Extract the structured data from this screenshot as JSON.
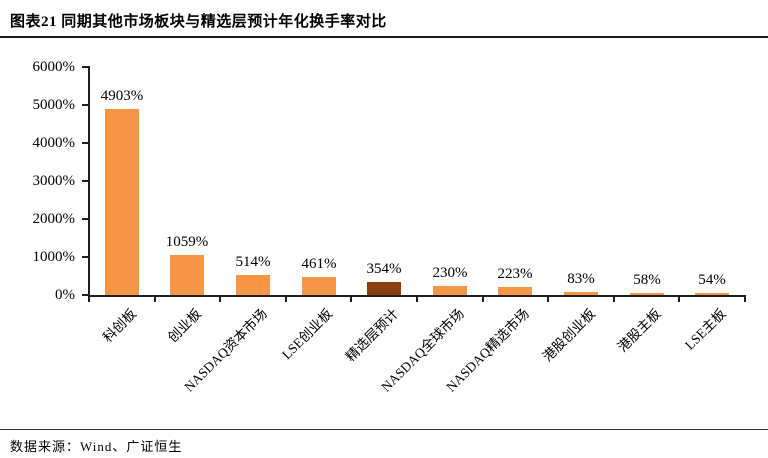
{
  "header": {
    "title": "图表21 同期其他市场板块与精选层预计年化换手率对比"
  },
  "footer": {
    "source_label": "数据来源：Wind、广证恒生"
  },
  "chart_data": {
    "type": "bar",
    "title": "同期其他市场板块与精选层预计年化换手率对比",
    "categories": [
      "科创板",
      "创业板",
      "NASDAQ资本市场",
      "LSE创业板",
      "精选层预计",
      "NASDAQ全球市场",
      "NASDAQ精选市场",
      "港股创业板",
      "港股主板",
      "LSE主板"
    ],
    "values": [
      4903,
      1059,
      514,
      461,
      354,
      230,
      223,
      83,
      58,
      54
    ],
    "value_labels": [
      "4903%",
      "1059%",
      "514%",
      "461%",
      "354%",
      "230%",
      "223%",
      "83%",
      "58%",
      "54%"
    ],
    "ytick_labels": [
      "0%",
      "1000%",
      "2000%",
      "3000%",
      "4000%",
      "5000%",
      "6000%"
    ],
    "ylim": [
      0,
      6000
    ],
    "xlabel": "",
    "ylabel": "",
    "grid": false,
    "legend": "none",
    "bar_color": "#F79646",
    "highlight_index": 4,
    "highlight_color": "#8B3E0E",
    "axis_color": "#1f1f1f"
  }
}
